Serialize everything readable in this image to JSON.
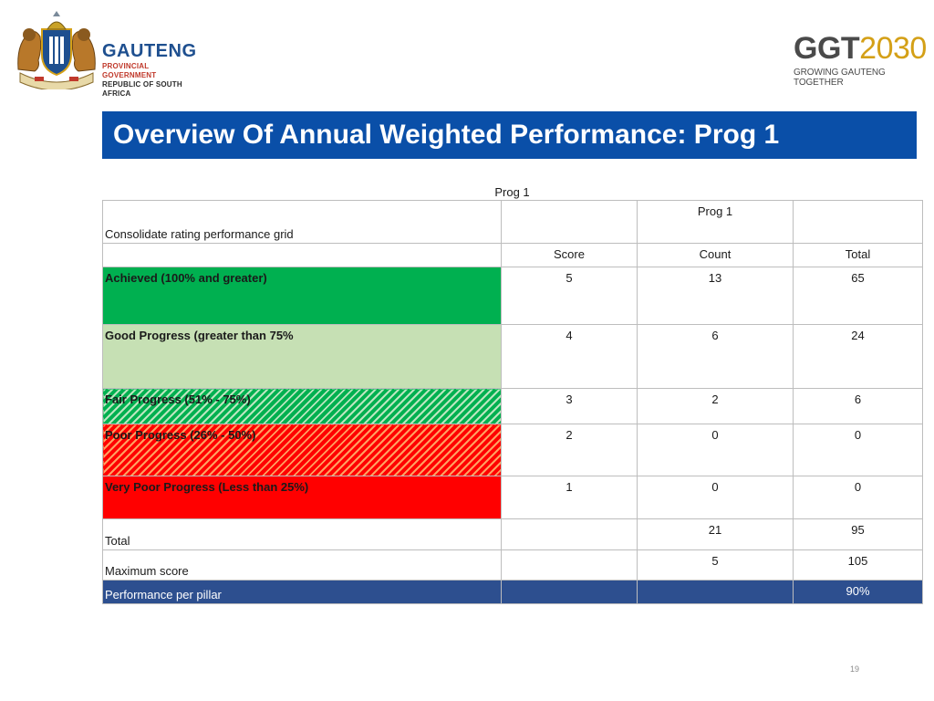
{
  "header": {
    "org_name": "GAUTENG",
    "org_line1": "PROVINCIAL GOVERNMENT",
    "org_line2": "REPUBLIC OF SOUTH AFRICA",
    "brand_main_a": "GGT",
    "brand_main_b": "2030",
    "brand_tagline": "GROWING GAUTENG TOGETHER",
    "crest_icon": "coat-of-arms-icon"
  },
  "title": "Overview Of Annual Weighted Performance: Prog 1",
  "table": {
    "caption": "Prog 1",
    "subheader": "Prog 1",
    "grid_label": "Consolidate rating performance grid",
    "columns": [
      "Score",
      "Count",
      "Total"
    ],
    "rows": [
      {
        "label": "Achieved (100%  and greater)",
        "score": "5",
        "count": "13",
        "total": "65",
        "color": "#00b050"
      },
      {
        "label": "Good Progress (greater than 75%",
        "score": "4",
        "count": "6",
        "total": "24",
        "color": "#c6e0b4"
      },
      {
        "label": "Fair Progress (51% - 75%)",
        "score": "3",
        "count": "2",
        "total": "6",
        "color": "#00b050"
      },
      {
        "label": "Poor Progress (26% - 50%)",
        "score": "2",
        "count": "0",
        "total": "0",
        "color": "#ff0000"
      },
      {
        "label": "Very Poor Progress (Less than 25%)",
        "score": "1",
        "count": "0",
        "total": "0",
        "color": "#ff0000"
      }
    ],
    "total_row": {
      "label": "Total",
      "count": "21",
      "total": "95"
    },
    "max_row": {
      "label": "Maximum score",
      "count": "5",
      "total": "105"
    },
    "perf_row": {
      "label": "Performance per pillar",
      "total": "90%",
      "color": "#2d4f8f"
    }
  },
  "page_number": "19",
  "colors": {
    "title_bar": "#0a4fa8",
    "brand_blue": "#1e4f8f",
    "brand_gold": "#d4a017"
  }
}
